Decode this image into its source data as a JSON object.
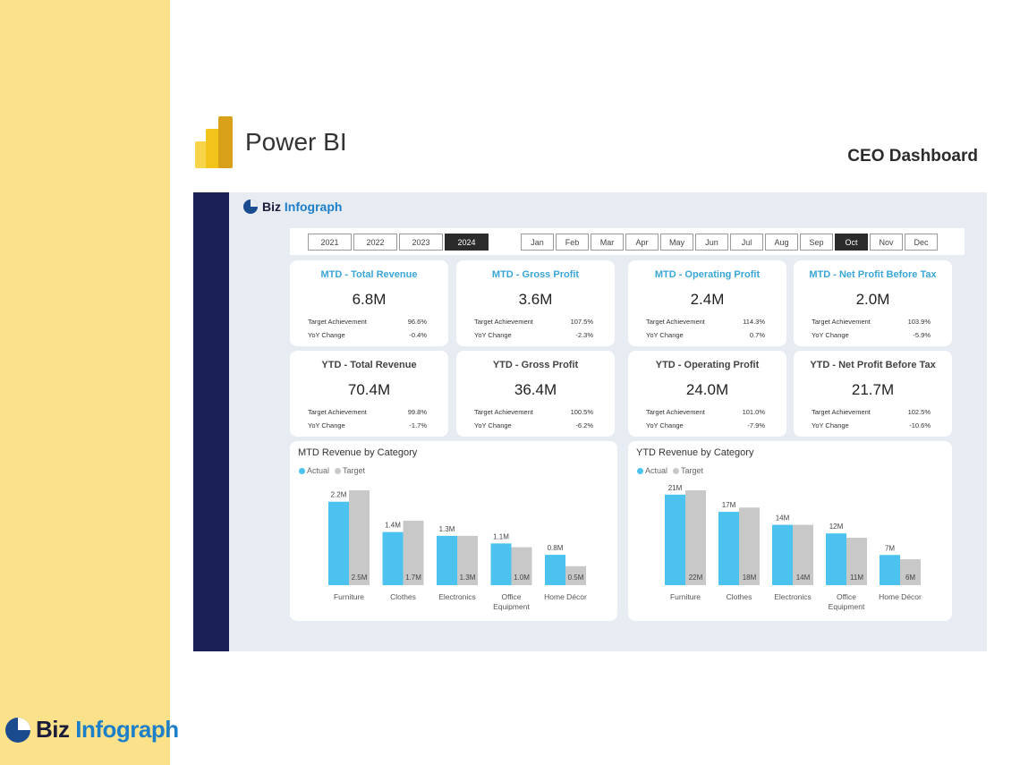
{
  "brand": {
    "biz": "Biz",
    "infograph": "Infograph"
  },
  "header": {
    "app_title": "Power BI",
    "page_title": "CEO Dashboard"
  },
  "filters": {
    "years": [
      "2021",
      "2022",
      "2023",
      "2024"
    ],
    "selected_year": "2024",
    "months": [
      "Jan",
      "Feb",
      "Mar",
      "Apr",
      "May",
      "Jun",
      "Jul",
      "Aug",
      "Sep",
      "Oct",
      "Nov",
      "Dec"
    ],
    "selected_month": "Oct"
  },
  "kpis": {
    "mtd": [
      {
        "title": "MTD - Total Revenue",
        "value": "6.8M",
        "target_label": "Target Achievement",
        "target": "96.6%",
        "yoy_label": "YoY Change",
        "yoy": "-0.4%"
      },
      {
        "title": "MTD - Gross Profit",
        "value": "3.6M",
        "target_label": "Target Achievement",
        "target": "107.5%",
        "yoy_label": "YoY Change",
        "yoy": "-2.3%"
      },
      {
        "title": "MTD - Operating Profit",
        "value": "2.4M",
        "target_label": "Target Achievement",
        "target": "114.3%",
        "yoy_label": "YoY Change",
        "yoy": "0.7%"
      },
      {
        "title": "MTD - Net Profit Before Tax",
        "value": "2.0M",
        "target_label": "Target Achievement",
        "target": "103.9%",
        "yoy_label": "YoY Change",
        "yoy": "-5.9%"
      }
    ],
    "ytd": [
      {
        "title": "YTD - Total Revenue",
        "value": "70.4M",
        "target_label": "Target Achievement",
        "target": "99.8%",
        "yoy_label": "YoY Change",
        "yoy": "-1.7%"
      },
      {
        "title": "YTD - Gross Profit",
        "value": "36.4M",
        "target_label": "Target Achievement",
        "target": "100.5%",
        "yoy_label": "YoY Change",
        "yoy": "-6.2%"
      },
      {
        "title": "YTD - Operating Profit",
        "value": "24.0M",
        "target_label": "Target Achievement",
        "target": "101.0%",
        "yoy_label": "YoY Change",
        "yoy": "-7.9%"
      },
      {
        "title": "YTD - Net Profit Before Tax",
        "value": "21.7M",
        "target_label": "Target Achievement",
        "target": "102.5%",
        "yoy_label": "YoY Change",
        "yoy": "-10.6%"
      }
    ]
  },
  "colors": {
    "actual": "#4cc3ef",
    "target": "#c8c8c8",
    "sidebar": "#1b2055",
    "band": "#fbe28a"
  },
  "chart_data": [
    {
      "type": "bar",
      "title": "MTD Revenue by Category",
      "categories": [
        "Furniture",
        "Clothes",
        "Electronics",
        "Office Equipment",
        "Home Décor"
      ],
      "series": [
        {
          "name": "Actual",
          "values": [
            2.2,
            1.4,
            1.3,
            1.1,
            0.8
          ],
          "labels": [
            "2.2M",
            "1.4M",
            "1.3M",
            "1.1M",
            "0.8M"
          ]
        },
        {
          "name": "Target",
          "values": [
            2.5,
            1.7,
            1.3,
            1.0,
            0.5
          ],
          "labels": [
            "2.5M",
            "1.7M",
            "1.3M",
            "1.0M",
            "0.5M"
          ]
        }
      ],
      "legend": "top-left",
      "grid": false
    },
    {
      "type": "bar",
      "title": "YTD Revenue by Category",
      "categories": [
        "Furniture",
        "Clothes",
        "Electronics",
        "Office Equipment",
        "Home Décor"
      ],
      "series": [
        {
          "name": "Actual",
          "values": [
            21,
            17,
            14,
            12,
            7
          ],
          "labels": [
            "21M",
            "17M",
            "14M",
            "12M",
            "7M"
          ]
        },
        {
          "name": "Target",
          "values": [
            22,
            18,
            14,
            11,
            6
          ],
          "labels": [
            "22M",
            "18M",
            "14M",
            "11M",
            "6M"
          ]
        }
      ],
      "legend": "top-left",
      "grid": false
    }
  ]
}
